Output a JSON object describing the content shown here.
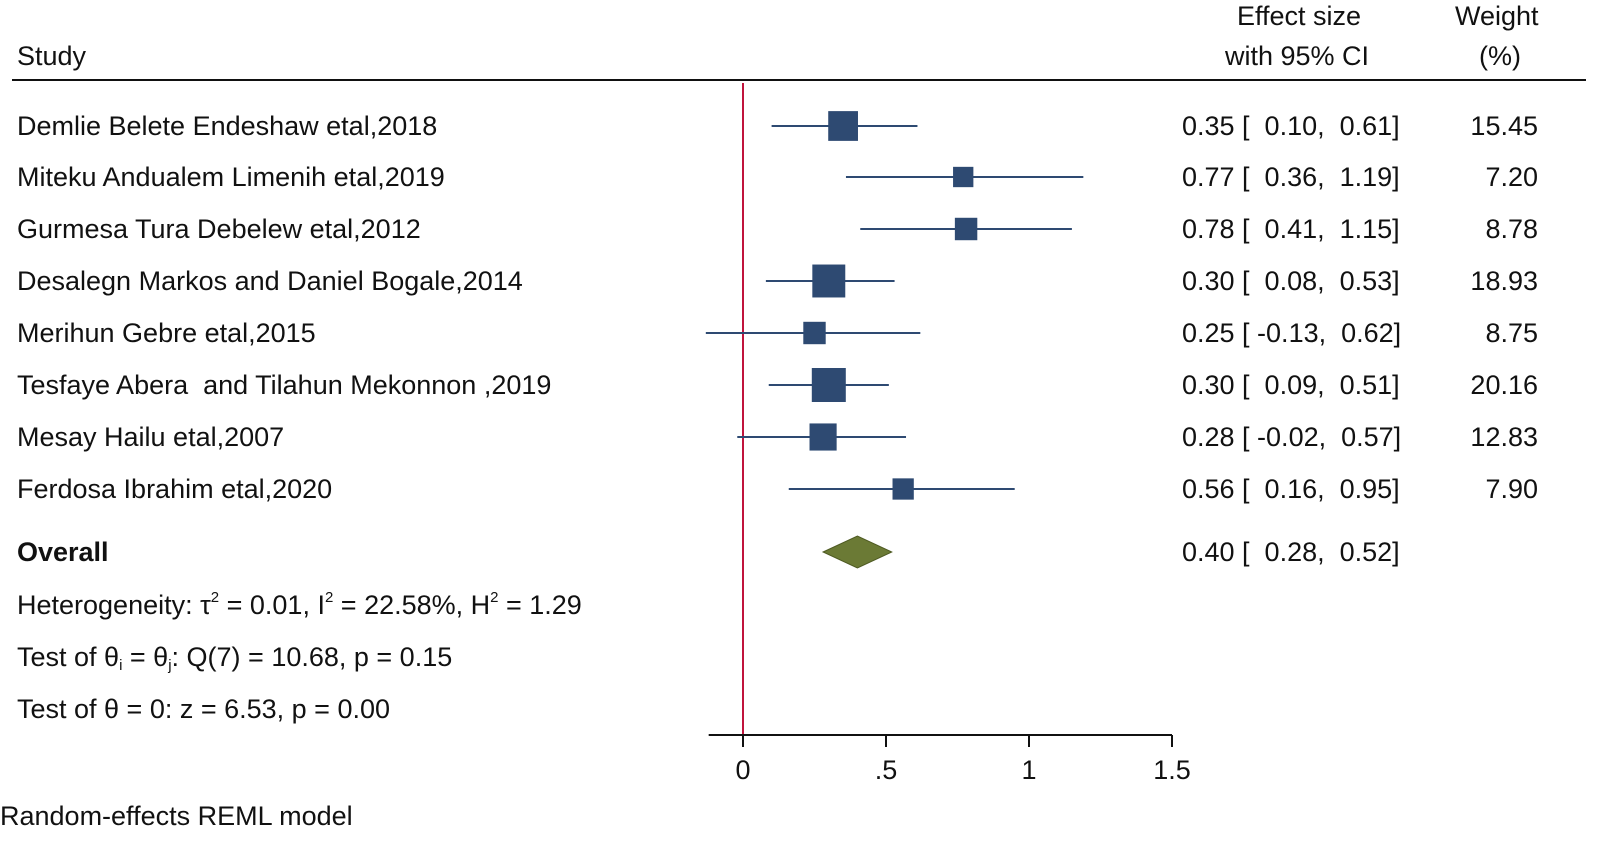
{
  "header": {
    "study": "Study",
    "effect_line1": "Effect size",
    "effect_line2": "with 95% CI",
    "weight_line1": "Weight",
    "weight_line2": "(%)"
  },
  "chart_data": {
    "type": "forest",
    "studies": [
      {
        "name": "Demlie Belete Endeshaw etal,2018",
        "es": 0.35,
        "lo": 0.1,
        "hi": 0.61,
        "es_text": "0.35 [  0.10,  0.61]",
        "weight": 15.45,
        "weight_text": "15.45"
      },
      {
        "name": "Miteku Andualem Limenih etal,2019",
        "es": 0.77,
        "lo": 0.36,
        "hi": 1.19,
        "es_text": "0.77 [  0.36,  1.19]",
        "weight": 7.2,
        "weight_text": "7.20"
      },
      {
        "name": "Gurmesa Tura Debelew etal,2012",
        "es": 0.78,
        "lo": 0.41,
        "hi": 1.15,
        "es_text": "0.78 [  0.41,  1.15]",
        "weight": 8.78,
        "weight_text": "8.78"
      },
      {
        "name": "Desalegn Markos and Daniel Bogale,2014",
        "es": 0.3,
        "lo": 0.08,
        "hi": 0.53,
        "es_text": "0.30 [  0.08,  0.53]",
        "weight": 18.93,
        "weight_text": "18.93"
      },
      {
        "name": "Merihun Gebre etal,2015",
        "es": 0.25,
        "lo": -0.13,
        "hi": 0.62,
        "es_text": "0.25 [ -0.13,  0.62]",
        "weight": 8.75,
        "weight_text": "8.75"
      },
      {
        "name": "Tesfaye Abera  and Tilahun Mekonnon ,2019",
        "es": 0.3,
        "lo": 0.09,
        "hi": 0.51,
        "es_text": "0.30 [  0.09,  0.51]",
        "weight": 20.16,
        "weight_text": "20.16"
      },
      {
        "name": "Mesay Hailu etal,2007",
        "es": 0.28,
        "lo": -0.02,
        "hi": 0.57,
        "es_text": "0.28 [ -0.02,  0.57]",
        "weight": 12.83,
        "weight_text": "12.83"
      },
      {
        "name": "Ferdosa Ibrahim etal,2020",
        "es": 0.56,
        "lo": 0.16,
        "hi": 0.95,
        "es_text": "0.56 [  0.16,  0.95]",
        "weight": 7.9,
        "weight_text": "7.90"
      }
    ],
    "overall": {
      "label": "Overall",
      "es": 0.4,
      "lo": 0.28,
      "hi": 0.52,
      "es_text": "0.40 [  0.28,  0.52]"
    },
    "x_ticks": [
      0,
      0.5,
      1,
      1.5
    ],
    "x_tick_labels": [
      "0",
      ".5",
      "1",
      "1.5"
    ],
    "xlim": [
      -0.12,
      1.5
    ],
    "reference_line": 0,
    "colors": {
      "marker": "#2e4a72",
      "ci_line": "#2e4a72",
      "diamond": "#6b7a35",
      "reference": "#c0143c",
      "axis": "#111111"
    }
  },
  "stats": {
    "heterogeneity": {
      "prefix": "Heterogeneity: τ",
      "tau_sup": "2",
      "mid1": " = 0.01, I",
      "i_sup": "2",
      "mid2": " = 22.58%, H",
      "h_sup": "2",
      "suffix": " = 1.29"
    },
    "test_ij": {
      "prefix": "Test of θ",
      "sub_i": "i",
      "mid": " = θ",
      "sub_j": "j",
      "suffix": ": Q(7) = 10.68, p = 0.15"
    },
    "test_zero": "Test of θ = 0: z = 6.53, p = 0.00"
  },
  "footer": {
    "model": "Random-effects REML model"
  }
}
